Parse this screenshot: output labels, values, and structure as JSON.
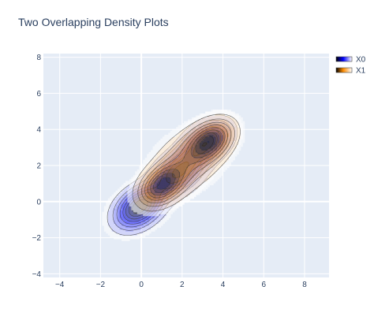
{
  "chart_data": {
    "type": "contour",
    "title": "Two Overlapping Density Plots",
    "xlabel": "",
    "ylabel": "",
    "xlim": [
      -4.8,
      9.2
    ],
    "ylim": [
      -4.2,
      8.2
    ],
    "x_ticks": [
      -4,
      -2,
      0,
      2,
      4,
      6,
      8
    ],
    "y_ticks": [
      -4,
      -2,
      0,
      2,
      4,
      6,
      8
    ],
    "grid": true,
    "legend_position": "top-right",
    "series": [
      {
        "name": "X0",
        "colorscale": [
          "#ffffff",
          "#0000ff",
          "#000000"
        ],
        "peaks": [
          {
            "x": -0.1,
            "y": -0.3,
            "weight": 1.0,
            "spread": 0.7
          },
          {
            "x": 1.8,
            "y": 1.6,
            "weight": 0.8,
            "spread": 0.75
          },
          {
            "x": 3.2,
            "y": 3.3,
            "weight": 0.85,
            "spread": 0.7
          }
        ]
      },
      {
        "name": "X1",
        "colorscale": [
          "#ffffff",
          "#ff8c00",
          "#000000"
        ],
        "peaks": [
          {
            "x": 1.0,
            "y": 0.9,
            "weight": 1.0,
            "spread": 0.65
          },
          {
            "x": 3.4,
            "y": 3.4,
            "weight": 0.95,
            "spread": 0.65
          },
          {
            "x": 2.3,
            "y": 2.3,
            "weight": 0.5,
            "spread": 1.0
          }
        ]
      }
    ]
  }
}
